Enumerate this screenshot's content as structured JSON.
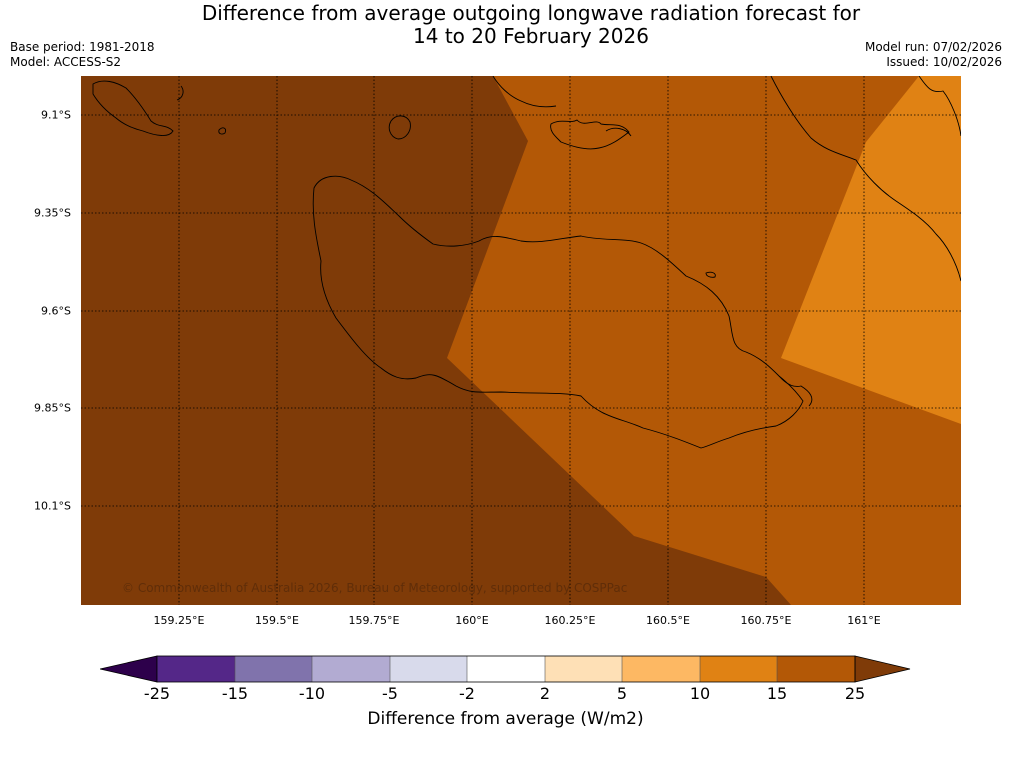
{
  "header": {
    "title_line1": "Difference from average outgoing longwave radiation forecast for",
    "title_line2": "14 to 20 February 2026",
    "base_period": "Base period: 1981-2018",
    "model": "Model: ACCESS-S2",
    "model_run": "Model run: 07/02/2026",
    "issued": "Issued: 10/02/2026"
  },
  "map": {
    "copyright": "© Commonwealth of Australia 2026, Bureau of Meteorology, supported by COSPPac",
    "lat_labels": [
      "9.1°S",
      "9.35°S",
      "9.6°S",
      "9.85°S",
      "10.1°S"
    ],
    "lon_labels": [
      "159.25°E",
      "159.5°E",
      "159.75°E",
      "160°E",
      "160.25°E",
      "160.5°E",
      "160.75°E",
      "161°E"
    ],
    "colors": {
      "band_25_plus": "#7f3b08",
      "band_15_25": "#b35806",
      "band_10_15": "#e08214"
    }
  },
  "colorbar": {
    "label": "Difference from average (W/m2)",
    "ticks": [
      "-25",
      "-15",
      "-10",
      "-5",
      "-2",
      "2",
      "5",
      "10",
      "15",
      "25"
    ],
    "colors": [
      "#2d004b",
      "#542788",
      "#8073ac",
      "#b2abd2",
      "#d8daeb",
      "#ffffff",
      "#fee0b6",
      "#fdb863",
      "#e08214",
      "#b35806",
      "#7f3b08"
    ]
  }
}
